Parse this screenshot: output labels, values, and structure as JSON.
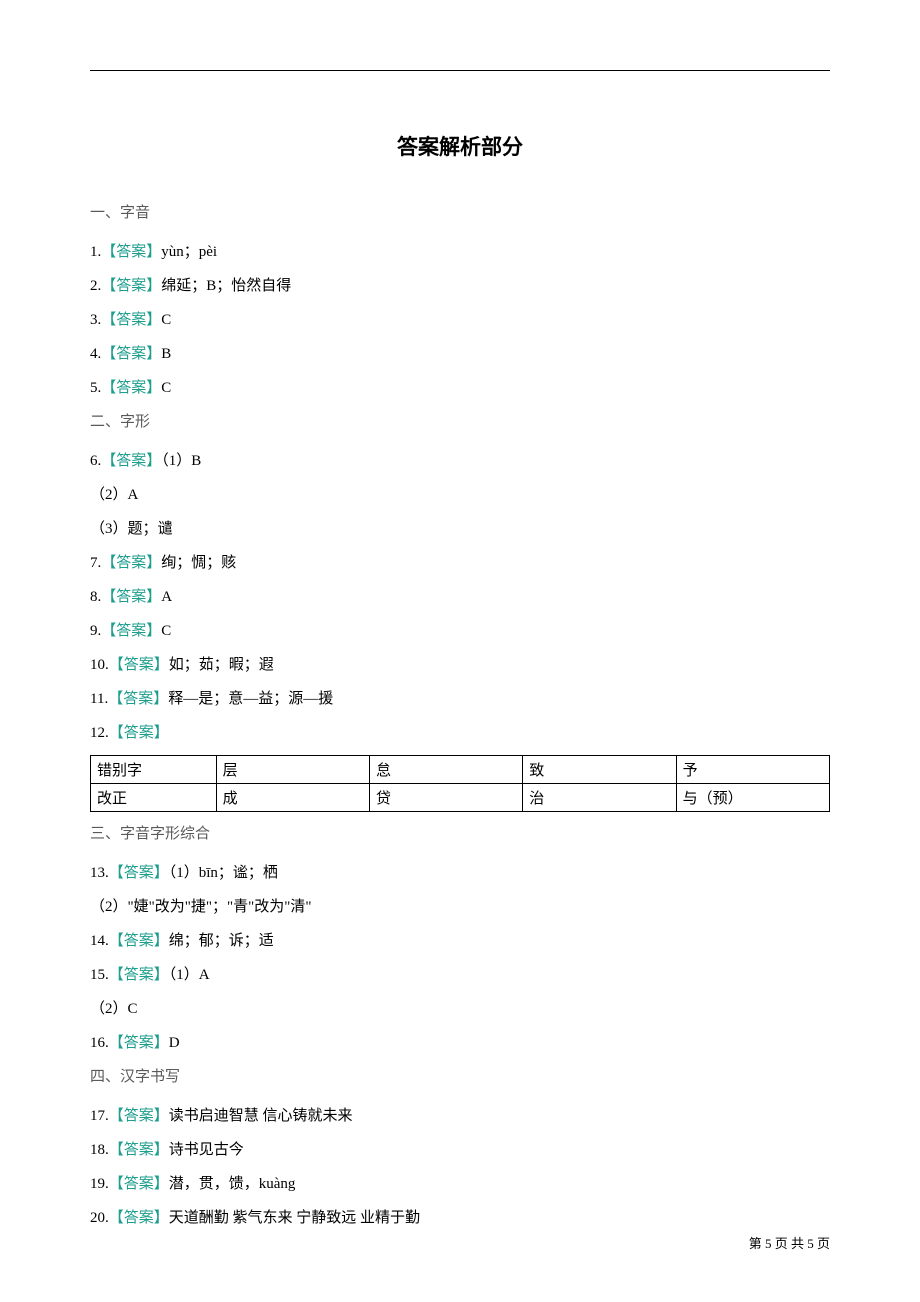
{
  "title": "答案解析部分",
  "sections": {
    "s1": {
      "heading": "一、字音"
    },
    "s2": {
      "heading": "二、字形"
    },
    "s3": {
      "heading": "三、字音字形综合"
    },
    "s4": {
      "heading": "四、汉字书写"
    }
  },
  "answer_label": "【答案】",
  "items": {
    "q1": {
      "num": "1.",
      "text": "yùn；pèi"
    },
    "q2": {
      "num": "2.",
      "text": "绵延；B；怡然自得"
    },
    "q3": {
      "num": "3.",
      "text": "C"
    },
    "q4": {
      "num": "4.",
      "text": "B"
    },
    "q5": {
      "num": "5.",
      "text": "C"
    },
    "q6": {
      "num": "6.",
      "text": "（1）B"
    },
    "q6_2": {
      "text": "（2）A"
    },
    "q6_3": {
      "text": "（3）题；谴"
    },
    "q7": {
      "num": "7.",
      "text": "绚；惆；赅"
    },
    "q8": {
      "num": "8.",
      "text": "A"
    },
    "q9": {
      "num": "9.",
      "text": "C"
    },
    "q10": {
      "num": "10.",
      "text": "如；茹；暇；遐"
    },
    "q11": {
      "num": "11.",
      "text": "释—是；意—益；源—援"
    },
    "q12": {
      "num": "12."
    },
    "q13": {
      "num": "13.",
      "text": "（1）bīn；谧；栖"
    },
    "q13_2": {
      "text": "（2）\"婕\"改为\"捷\"；\"青\"改为\"清\""
    },
    "q14": {
      "num": "14.",
      "text": "绵；郁；诉；适"
    },
    "q15": {
      "num": "15.",
      "text": "（1）A"
    },
    "q15_2": {
      "text": "（2）C"
    },
    "q16": {
      "num": "16.",
      "text": "D"
    },
    "q17": {
      "num": "17.",
      "text": "读书启迪智慧  信心铸就未来"
    },
    "q18": {
      "num": "18.",
      "text": "诗书见古今"
    },
    "q19": {
      "num": "19.",
      "text": "潜，贯，馈，kuàng"
    },
    "q20": {
      "num": "20.",
      "text": "天道酬勤  紫气东来 宁静致远 业精于勤"
    }
  },
  "table": {
    "row1": {
      "h": "错别字",
      "c1": "层",
      "c2": "怠",
      "c3": "致",
      "c4": "予"
    },
    "row2": {
      "h": "改正",
      "c1": "成",
      "c2": "贷",
      "c3": "治",
      "c4": "与（预）"
    }
  },
  "footer": "第 5 页 共 5 页"
}
